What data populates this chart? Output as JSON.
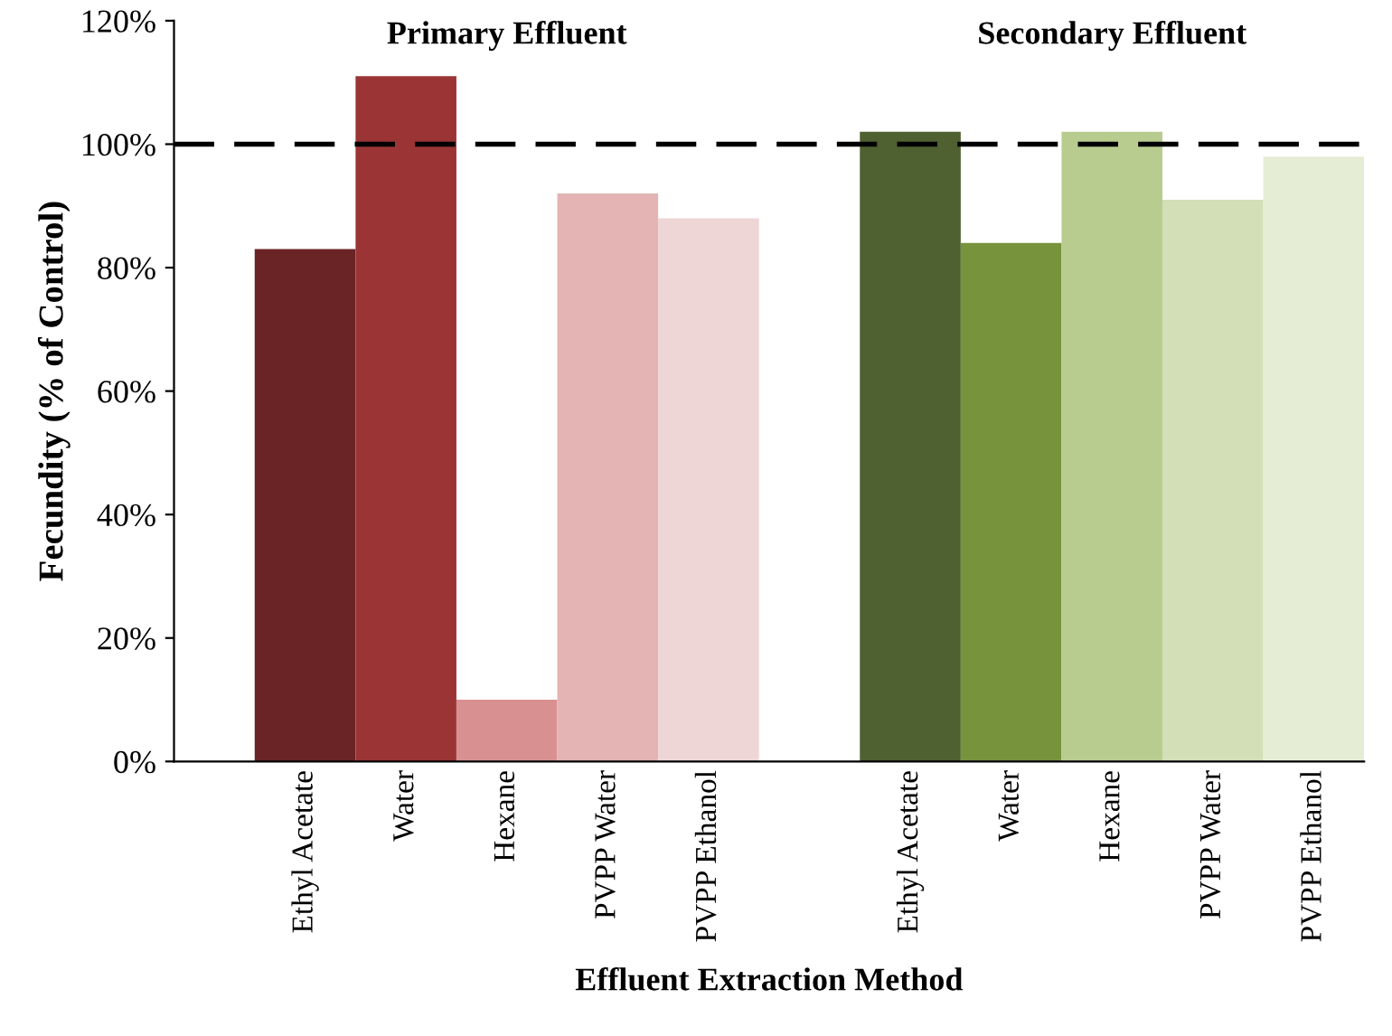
{
  "chart_data": {
    "type": "bar",
    "xlabel": "Effluent Extraction Method",
    "ylabel": "Fecundity (% of Control)",
    "categories": [
      "Ethyl Acetate",
      "Water",
      "Hexane",
      "PVPP Water",
      "PVPP Ethanol",
      null,
      "Ethyl Acetate",
      "Water",
      "Hexane",
      "PVPP Water",
      "PVPP Ethanol"
    ],
    "values": [
      83,
      111,
      10,
      92,
      88,
      null,
      102,
      84,
      102,
      91,
      98
    ],
    "colors": [
      "#6b2426",
      "#9b3535",
      "#d99090",
      "#e4b3b3",
      "#efd6d6",
      null,
      "#4f6130",
      "#77933c",
      "#b8cc8f",
      "#d2dfb7",
      "#e6edd5"
    ],
    "ylim": [
      0,
      120
    ],
    "yticks": [
      {
        "value": 0,
        "label": "0%"
      },
      {
        "value": 20,
        "label": "20%"
      },
      {
        "value": 40,
        "label": "40%"
      },
      {
        "value": 60,
        "label": "60%"
      },
      {
        "value": 80,
        "label": "80%"
      },
      {
        "value": 100,
        "label": "100%"
      },
      {
        "value": 120,
        "label": "120%"
      }
    ],
    "ref_lines": [
      {
        "axis": "y",
        "value": 100,
        "color": "#000000",
        "line_style": "dashed"
      }
    ],
    "annotations": [
      "Primary Effluent",
      "Secondary Effluent"
    ],
    "grid": false,
    "legend": false
  }
}
